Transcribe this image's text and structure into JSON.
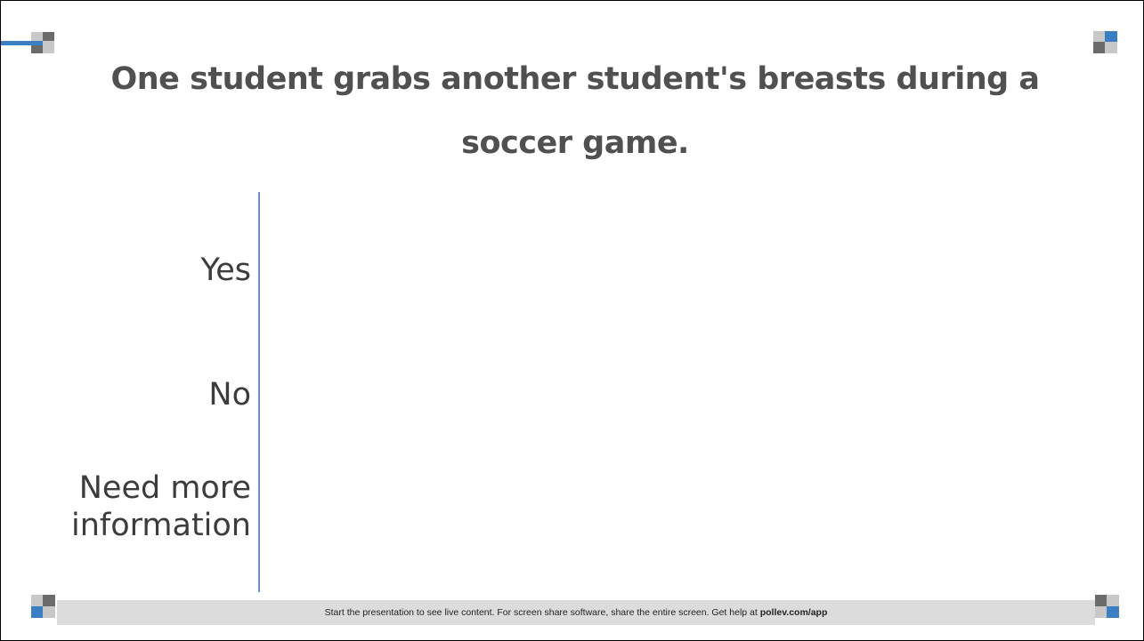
{
  "slide": {
    "title": "One student grabs another student's breasts during a soccer game.",
    "options": [
      {
        "label": "Yes",
        "votes": 0
      },
      {
        "label": "No",
        "votes": 0
      },
      {
        "label": "Need more information",
        "votes": 0
      }
    ]
  },
  "footer": {
    "text": "Start the presentation to see live content. For screen share software, share the entire screen. Get help at ",
    "link": "pollev.com/app"
  },
  "colors": {
    "title": "#505050",
    "axis": "#6a90c8",
    "footer_bg": "#dcdcdc",
    "accent_blue": "#3a7fc4",
    "deco_gray_dark": "#6b6b6b",
    "deco_gray_light": "#c8c8c8"
  },
  "chart_data": {
    "type": "bar",
    "orientation": "horizontal",
    "categories": [
      "Yes",
      "No",
      "Need more information"
    ],
    "values": [
      0,
      0,
      0
    ]
  }
}
